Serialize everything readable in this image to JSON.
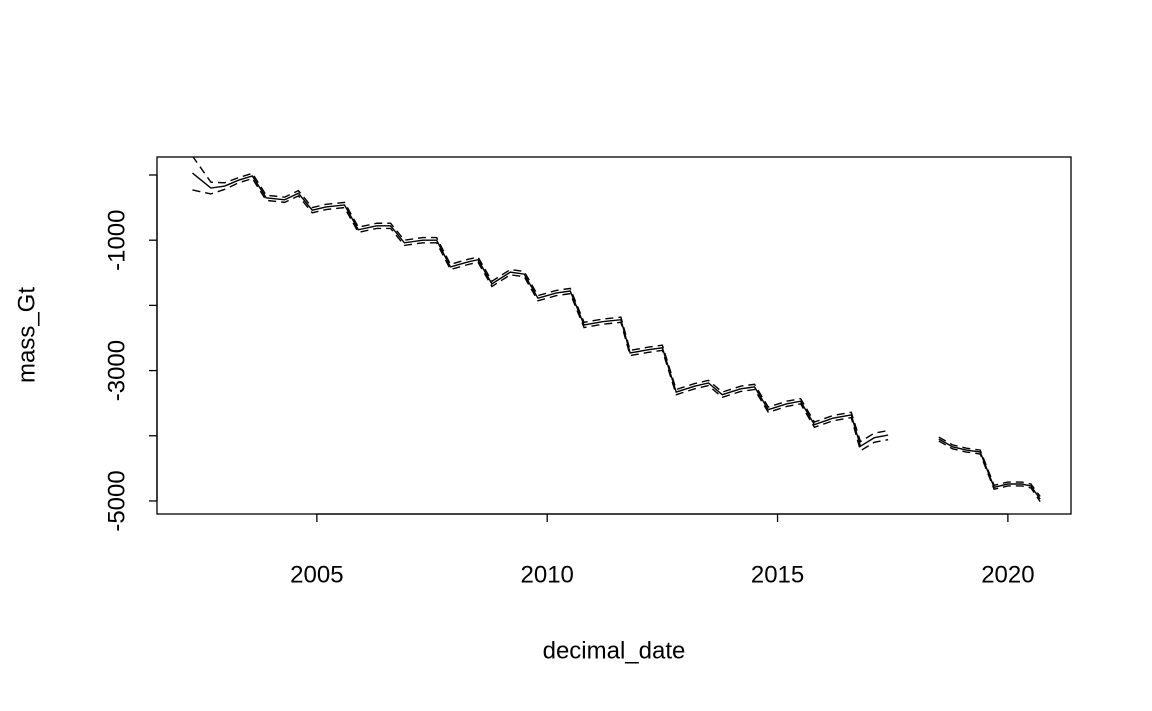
{
  "chart_data": {
    "type": "line",
    "xlabel": "decimal_date",
    "ylabel": "mass_Gt",
    "xlim": [
      2001.53,
      2021.37
    ],
    "xticks": [
      2005,
      2010,
      2015,
      2020
    ],
    "ylim": [
      -5200,
      276
    ],
    "yticks": [
      -1000,
      -3000,
      -5000
    ],
    "yminor_ticks": [
      0,
      -2000,
      -4000
    ],
    "grid": false,
    "x": [
      2002.3,
      2002.7,
      2003.0,
      2003.3,
      2003.6,
      2003.9,
      2004.3,
      2004.6,
      2004.9,
      2005.2,
      2005.6,
      2005.9,
      2006.3,
      2006.6,
      2006.9,
      2007.3,
      2007.6,
      2007.9,
      2008.3,
      2008.5,
      2008.8,
      2009.2,
      2009.5,
      2009.8,
      2010.2,
      2010.5,
      2010.8,
      2011.2,
      2011.6,
      2011.8,
      2012.2,
      2012.5,
      2012.8,
      2013.2,
      2013.5,
      2013.8,
      2014.2,
      2014.5,
      2014.8,
      2015.2,
      2015.5,
      2015.8,
      2016.2,
      2016.6,
      2016.8,
      2017.1,
      2017.4,
      2018.0,
      2018.5,
      2018.8,
      2019.1,
      2019.4,
      2019.7,
      2020.0,
      2020.3,
      2020.5,
      2020.7
    ],
    "series": [
      {
        "color": "#000000",
        "style": "solid",
        "values": [
          30,
          -200,
          -170,
          -80,
          -15,
          -350,
          -380,
          -280,
          -540,
          -490,
          -460,
          -840,
          -780,
          -780,
          -1040,
          -1000,
          -1000,
          -1410,
          -1330,
          -1300,
          -1670,
          -1490,
          -1520,
          -1890,
          -1810,
          -1780,
          -2300,
          -2250,
          -2220,
          -2730,
          -2680,
          -2650,
          -3330,
          -3240,
          -3190,
          -3370,
          -3280,
          -3250,
          -3600,
          -3510,
          -3470,
          -3830,
          -3730,
          -3680,
          -4160,
          -4030,
          -3990,
          null,
          -4050,
          -4170,
          -4220,
          -4250,
          -4790,
          -4740,
          -4740,
          -4770,
          -4970
        ]
      },
      {
        "color": "#000000",
        "style": "dashed",
        "values": [
          290,
          -110,
          -120,
          -40,
          25,
          -310,
          -340,
          -240,
          -500,
          -450,
          -420,
          -800,
          -740,
          -740,
          -1000,
          -960,
          -960,
          -1370,
          -1290,
          -1260,
          -1630,
          -1450,
          -1480,
          -1850,
          -1770,
          -1740,
          -2260,
          -2210,
          -2180,
          -2690,
          -2640,
          -2610,
          -3290,
          -3200,
          -3150,
          -3330,
          -3240,
          -3210,
          -3560,
          -3470,
          -3430,
          -3790,
          -3690,
          -3640,
          -4090,
          -3960,
          -3920,
          null,
          -4020,
          -4140,
          -4190,
          -4220,
          -4760,
          -4710,
          -4710,
          -4740,
          -4930
        ]
      },
      {
        "color": "#000000",
        "style": "dashed",
        "values": [
          -230,
          -290,
          -220,
          -120,
          -55,
          -390,
          -420,
          -320,
          -580,
          -530,
          -500,
          -880,
          -820,
          -820,
          -1080,
          -1040,
          -1040,
          -1450,
          -1370,
          -1340,
          -1710,
          -1530,
          -1560,
          -1930,
          -1850,
          -1820,
          -2340,
          -2290,
          -2260,
          -2770,
          -2720,
          -2690,
          -3370,
          -3280,
          -3230,
          -3410,
          -3320,
          -3290,
          -3640,
          -3550,
          -3510,
          -3870,
          -3770,
          -3720,
          -4230,
          -4100,
          -4060,
          null,
          -4080,
          -4200,
          -4250,
          -4280,
          -4820,
          -4770,
          -4770,
          -4800,
          -5010
        ]
      }
    ]
  }
}
